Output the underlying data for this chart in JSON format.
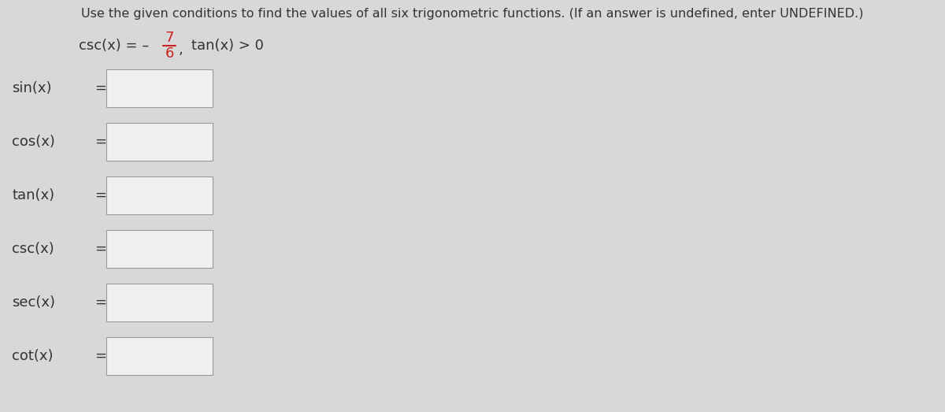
{
  "title": "Use the given conditions to find the values of all six trigonometric functions. (If an answer is undefined, enter UNDEFINED.)",
  "fraction_num": "7",
  "fraction_den": "6",
  "condition_text2": "tan(x) > 0",
  "functions": [
    "sin(x)",
    "cos(x)",
    "tan(x)",
    "csc(x)",
    "sec(x)",
    "cot(x)"
  ],
  "bg_color": "#d8d8d8",
  "box_color": "#f0f0f0",
  "box_border": "#999999",
  "text_color": "#333333",
  "fraction_color": "#cc2222",
  "title_fontsize": 11.5,
  "label_fontsize": 13,
  "condition_fontsize": 13
}
